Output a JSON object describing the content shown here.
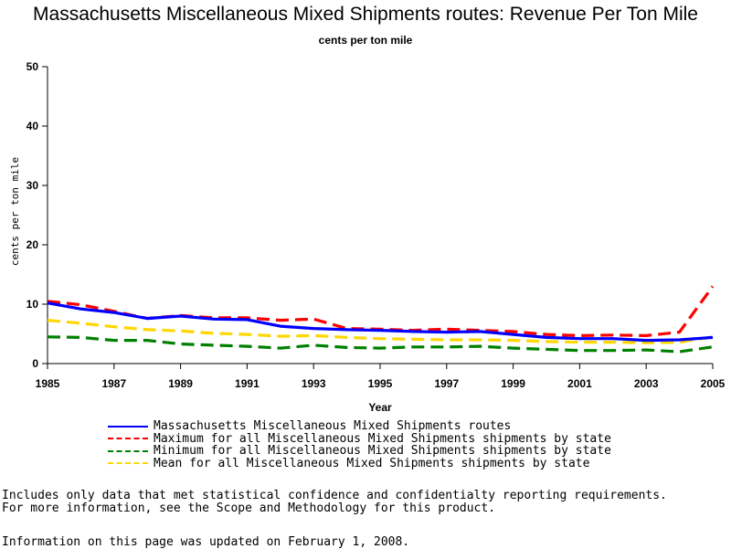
{
  "chart_data": {
    "type": "line",
    "title": "Massachusetts Miscellaneous Mixed Shipments routes: Revenue Per Ton Mile",
    "subtitle": "cents per ton mile",
    "xlabel": "Year",
    "ylabel": "cents per ton mile",
    "xlim": [
      1985,
      2005
    ],
    "ylim": [
      0,
      50
    ],
    "x_ticks": [
      "1985",
      "1987",
      "1989",
      "1991",
      "1993",
      "1995",
      "1997",
      "1999",
      "2001",
      "2003",
      "2005"
    ],
    "y_ticks": [
      "0",
      "10",
      "20",
      "30",
      "40",
      "50"
    ],
    "grid": false,
    "legend_position": "bottom",
    "x": [
      1985,
      1986,
      1987,
      1988,
      1989,
      1990,
      1991,
      1992,
      1993,
      1994,
      1995,
      1996,
      1997,
      1998,
      1999,
      2000,
      2001,
      2002,
      2003,
      2004,
      2005
    ],
    "series": [
      {
        "name": "Massachusetts Miscellaneous Mixed Shipments routes",
        "color": "#0000ff",
        "dashed": false,
        "values": [
          10.2,
          9.2,
          8.6,
          7.6,
          8.0,
          7.5,
          7.4,
          6.3,
          5.9,
          5.7,
          5.6,
          5.4,
          5.3,
          5.4,
          4.9,
          4.4,
          4.2,
          4.2,
          3.9,
          4.0,
          4.4
        ]
      },
      {
        "name": "Maximum for all Miscellaneous Mixed Shipments shipments by state",
        "color": "#ff0000",
        "dashed": true,
        "values": [
          10.5,
          9.9,
          8.8,
          7.6,
          8.1,
          7.7,
          7.7,
          7.3,
          7.5,
          5.9,
          5.8,
          5.6,
          5.8,
          5.6,
          5.4,
          4.9,
          4.7,
          4.8,
          4.7,
          5.3,
          13.0
        ]
      },
      {
        "name": "Minimum for all Miscellaneous Mixed Shipments shipments by state",
        "color": "#008000",
        "dashed": true,
        "values": [
          4.5,
          4.4,
          3.9,
          3.9,
          3.3,
          3.1,
          2.9,
          2.6,
          3.1,
          2.7,
          2.6,
          2.8,
          2.8,
          2.9,
          2.6,
          2.4,
          2.2,
          2.2,
          2.3,
          2.0,
          2.8
        ]
      },
      {
        "name": "Mean for all Miscellaneous Mixed Shipments shipments by state",
        "color": "#ffd700",
        "dashed": true,
        "values": [
          7.3,
          6.8,
          6.2,
          5.7,
          5.5,
          5.1,
          4.9,
          4.6,
          4.7,
          4.4,
          4.2,
          4.1,
          4.0,
          4.0,
          3.9,
          3.7,
          3.6,
          3.6,
          3.5,
          3.6,
          4.5
        ]
      }
    ]
  },
  "footnotes": {
    "line1": "Includes only data that met statistical confidence and confidentialty reporting requirements.",
    "line2": "For more information, see the Scope and Methodology for this product.",
    "line3": "Information on this page was updated on February 1, 2008."
  }
}
